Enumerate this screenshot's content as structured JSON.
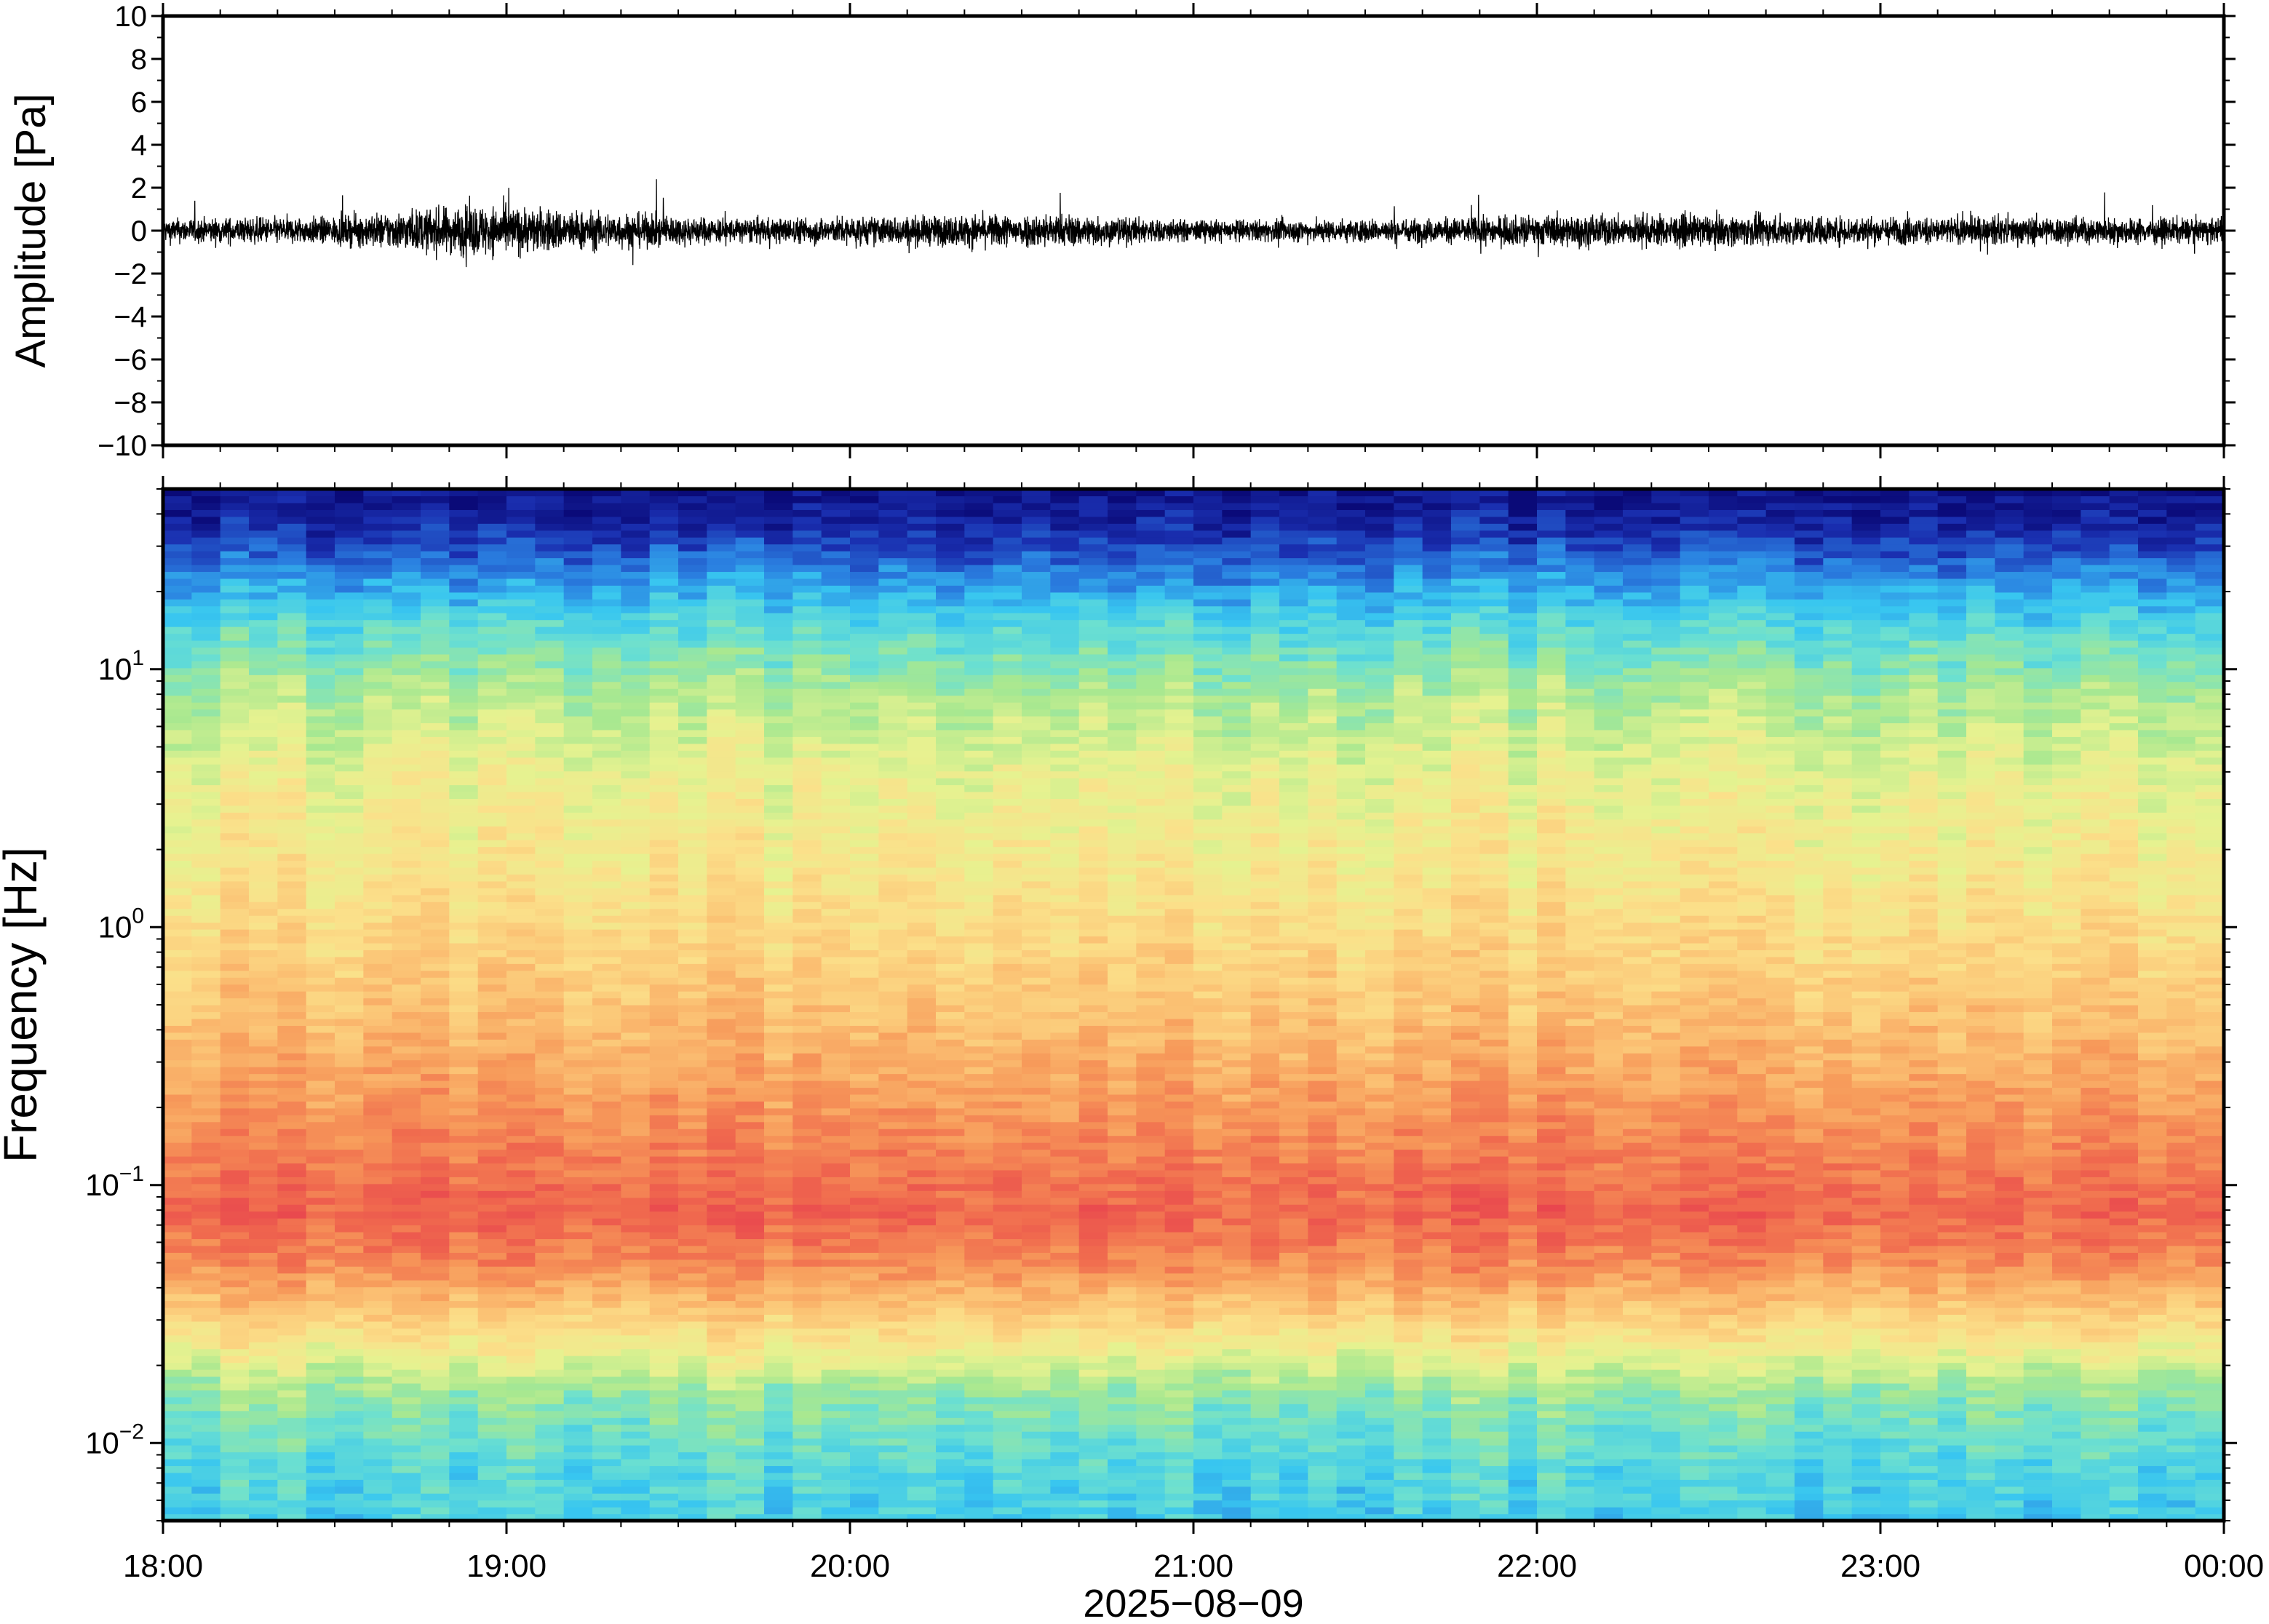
{
  "chart_data": [
    {
      "type": "line",
      "ylabel": "Amplitude [Pa]",
      "ylim": [
        -10,
        10
      ],
      "y_ticks": [
        {
          "value": -10,
          "label": "−10"
        },
        {
          "value": -8,
          "label": "−8"
        },
        {
          "value": -6,
          "label": "−6"
        },
        {
          "value": -4,
          "label": "−4"
        },
        {
          "value": -2,
          "label": "−2"
        },
        {
          "value": 0,
          "label": "0"
        },
        {
          "value": 2,
          "label": "2"
        },
        {
          "value": 4,
          "label": "4"
        },
        {
          "value": 6,
          "label": "6"
        },
        {
          "value": 8,
          "label": "8"
        },
        {
          "value": 10,
          "label": "10"
        }
      ],
      "xlim": [
        "18:00",
        "00:00"
      ],
      "series": [
        {
          "color": "#000000",
          "noise_envelope_pa": [
            {
              "x": "18:00",
              "y": 0.7
            },
            {
              "x": "18:30",
              "y": 0.8
            },
            {
              "x": "18:55",
              "y": 1.5
            },
            {
              "x": "19:10",
              "y": 1.2
            },
            {
              "x": "19:40",
              "y": 0.7
            },
            {
              "x": "20:20",
              "y": 0.9
            },
            {
              "x": "20:35",
              "y": 1.0
            },
            {
              "x": "21:00",
              "y": 0.6
            },
            {
              "x": "21:40",
              "y": 0.7
            },
            {
              "x": "22:00",
              "y": 0.9
            },
            {
              "x": "22:30",
              "y": 0.9
            },
            {
              "x": "23:00",
              "y": 0.8
            },
            {
              "x": "23:30",
              "y": 0.8
            },
            {
              "x": "00:00",
              "y": 0.7
            }
          ]
        }
      ]
    },
    {
      "type": "heatmap",
      "ylabel": "Frequency [Hz]",
      "y_scale": "log",
      "ylim": [
        0.005,
        50
      ],
      "y_ticks": [
        {
          "value": 0.01,
          "base": "10",
          "exp": "−2"
        },
        {
          "value": 0.1,
          "base": "10",
          "exp": "−1"
        },
        {
          "value": 1,
          "base": "10",
          "exp": "0"
        },
        {
          "value": 10,
          "base": "10",
          "exp": "1"
        }
      ],
      "colormap": [
        "#0a0a78",
        "#1a2fb0",
        "#2a7fe0",
        "#38c6f0",
        "#6ce0d0",
        "#a8e890",
        "#e6f290",
        "#fbe08a",
        "#fbc274",
        "#f79a5a",
        "#f06a4e",
        "#e8434e"
      ],
      "profile_vs_frequency": [
        {
          "hz": 50,
          "level": 0.02
        },
        {
          "hz": 35,
          "level": 0.08
        },
        {
          "hz": 25,
          "level": 0.18
        },
        {
          "hz": 15,
          "level": 0.33
        },
        {
          "hz": 8,
          "level": 0.47
        },
        {
          "hz": 4,
          "level": 0.56
        },
        {
          "hz": 1.5,
          "level": 0.62
        },
        {
          "hz": 0.5,
          "level": 0.72
        },
        {
          "hz": 0.2,
          "level": 0.82
        },
        {
          "hz": 0.08,
          "level": 0.93
        },
        {
          "hz": 0.05,
          "level": 0.85
        },
        {
          "hz": 0.03,
          "level": 0.68
        },
        {
          "hz": 0.015,
          "level": 0.42
        },
        {
          "hz": 0.008,
          "level": 0.33
        },
        {
          "hz": 0.005,
          "level": 0.3
        }
      ]
    }
  ],
  "x_axis": {
    "date_label": "2025−08−09",
    "ticks": [
      {
        "value": "18:00",
        "label": "18:00"
      },
      {
        "value": "19:00",
        "label": "19:00"
      },
      {
        "value": "20:00",
        "label": "20:00"
      },
      {
        "value": "21:00",
        "label": "21:00"
      },
      {
        "value": "22:00",
        "label": "22:00"
      },
      {
        "value": "23:00",
        "label": "23:00"
      },
      {
        "value": "00:00",
        "label": "00:00"
      }
    ]
  }
}
